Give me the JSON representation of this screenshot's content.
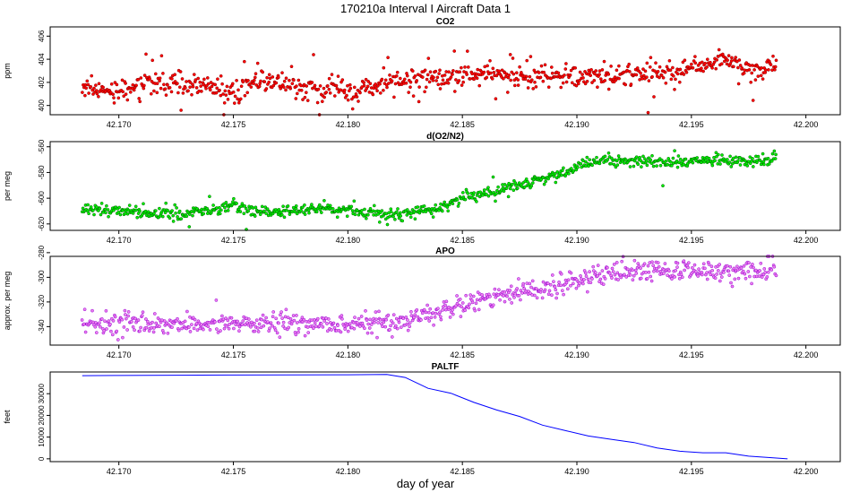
{
  "figure": {
    "title": "170210a   Interval I Aircraft Data 1",
    "xlabel": "day of year"
  },
  "chart_data": [
    {
      "type": "scatter",
      "title": "CO2",
      "ylabel": "ppm",
      "xlim": [
        42.167,
        42.2015
      ],
      "ylim": [
        399.2,
        406.8
      ],
      "xticks": [
        "42.170",
        "42.175",
        "42.180",
        "42.185",
        "42.190",
        "42.195",
        "42.200"
      ],
      "yticks": [
        "400",
        "402",
        "404",
        "406"
      ],
      "color": "#ff0000",
      "stroke": "#8b0000",
      "series": [
        {
          "name": "CO2",
          "x_range": [
            42.1684,
            42.1987
          ],
          "trend_x": [
            42.1684,
            42.17,
            42.1715,
            42.173,
            42.175,
            42.1765,
            42.178,
            42.18,
            42.182,
            42.184,
            42.186,
            42.188,
            42.19,
            42.192,
            42.194,
            42.1955,
            42.1965,
            42.1975,
            42.1987
          ],
          "trend_y": [
            401.6,
            401.3,
            402.1,
            401.8,
            401.2,
            402.3,
            401.4,
            401.2,
            402.0,
            402.4,
            402.7,
            402.4,
            402.5,
            402.6,
            402.8,
            403.2,
            404.2,
            403.1,
            403.2
          ],
          "noise": 0.45,
          "outlier_rate": 0.12,
          "outlier_spread": 1.3,
          "n": 820
        }
      ]
    },
    {
      "type": "scatter",
      "title": "d(O2/N2)",
      "ylabel": "per meg",
      "xlim": [
        42.167,
        42.2015
      ],
      "ylim": [
        -625,
        -556
      ],
      "xticks": [
        "42.170",
        "42.175",
        "42.180",
        "42.185",
        "42.190",
        "42.195",
        "42.200"
      ],
      "yticks": [
        "-620",
        "-600",
        "-580",
        "-560"
      ],
      "color": "#00ee00",
      "stroke": "#006400",
      "series": [
        {
          "name": "d(O2/N2)",
          "x_range": [
            42.1684,
            42.1987
          ],
          "trend_x": [
            42.1684,
            42.17,
            42.171,
            42.1725,
            42.175,
            42.1765,
            42.178,
            42.18,
            42.1815,
            42.1825,
            42.184,
            42.185,
            42.186,
            42.188,
            42.189,
            42.19,
            42.1915,
            42.194,
            42.196,
            42.1975,
            42.1987
          ],
          "trend_y": [
            -609,
            -609,
            -612,
            -613,
            -606,
            -611,
            -609,
            -609,
            -612,
            -612,
            -608,
            -600,
            -596,
            -588,
            -583,
            -576,
            -570,
            -572,
            -570,
            -572,
            -570
          ],
          "noise": 2.2,
          "outlier_rate": 0.06,
          "outlier_spread": 6,
          "n": 820
        }
      ]
    },
    {
      "type": "scatter",
      "title": "APO",
      "ylabel": "approx. per meg",
      "xlim": [
        42.167,
        42.2015
      ],
      "ylim": [
        -355,
        -283
      ],
      "xticks": [
        "42.170",
        "42.175",
        "42.180",
        "42.185",
        "42.190",
        "42.195",
        "42.200"
      ],
      "yticks": [
        "-340",
        "-320",
        "-300",
        "-280"
      ],
      "color": "#ee82ee",
      "stroke": "#9400d3",
      "series": [
        {
          "name": "APO",
          "x_range": [
            42.1684,
            42.1987
          ],
          "trend_x": [
            42.1684,
            42.172,
            42.176,
            42.18,
            42.1825,
            42.184,
            42.185,
            42.187,
            42.189,
            42.191,
            42.193,
            42.195,
            42.1987
          ],
          "trend_y": [
            -337,
            -338,
            -338,
            -338,
            -337,
            -327,
            -320,
            -314,
            -306,
            -298,
            -295,
            -295,
            -295
          ],
          "noise": 4.0,
          "outlier_rate": 0.05,
          "outlier_spread": 8,
          "n": 820
        }
      ]
    },
    {
      "type": "line",
      "title": "PALTF",
      "ylabel": "feet",
      "xlim": [
        42.167,
        42.2015
      ],
      "ylim": [
        -1300,
        40000
      ],
      "xticks": [
        "42.170",
        "42.175",
        "42.180",
        "42.185",
        "42.190",
        "42.195",
        "42.200"
      ],
      "yticks": [
        "0",
        "10000",
        "20000",
        "30000"
      ],
      "color": "#0000ff",
      "series": [
        {
          "name": "PALTF",
          "x": [
            42.1684,
            42.17,
            42.175,
            42.18,
            42.1817,
            42.1825,
            42.183,
            42.1835,
            42.1845,
            42.1855,
            42.1865,
            42.1875,
            42.1885,
            42.1895,
            42.1905,
            42.1915,
            42.1925,
            42.1935,
            42.1945,
            42.1955,
            42.1965,
            42.1975,
            42.1985,
            42.1992
          ],
          "y": [
            38300,
            38400,
            38600,
            38700,
            38900,
            37500,
            35000,
            32500,
            30200,
            26000,
            22500,
            19500,
            15500,
            13000,
            10500,
            9000,
            7500,
            5000,
            3500,
            2800,
            2800,
            1200,
            500,
            0
          ]
        }
      ]
    }
  ]
}
